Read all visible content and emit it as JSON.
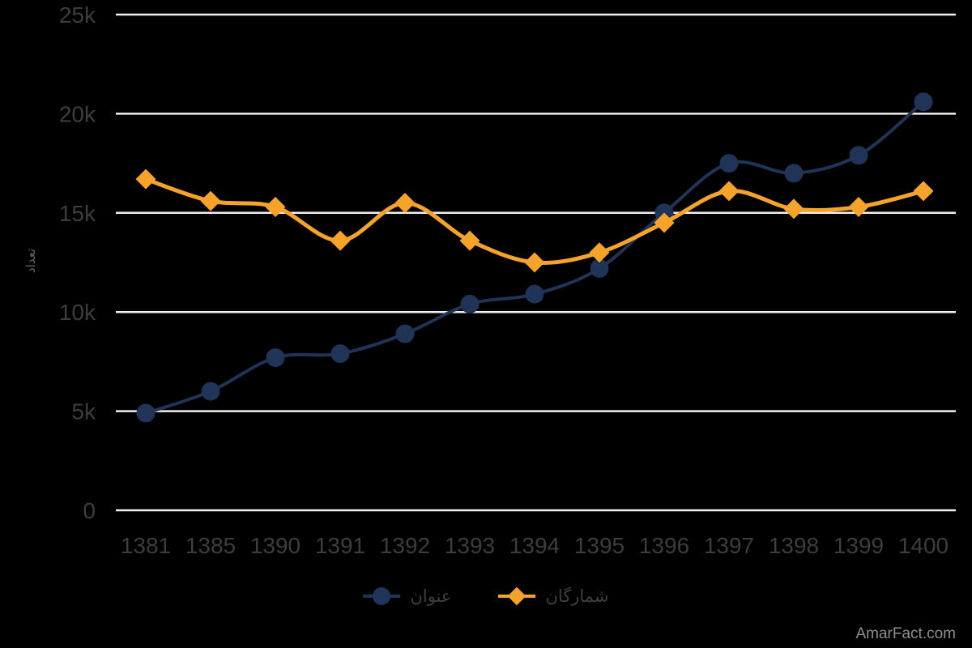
{
  "chart_data": {
    "type": "line",
    "title": "",
    "xlabel": "",
    "ylabel": "تعداد",
    "categories": [
      "1381",
      "1385",
      "1390",
      "1391",
      "1392",
      "1393",
      "1394",
      "1395",
      "1396",
      "1397",
      "1398",
      "1399",
      "1400"
    ],
    "series": [
      {
        "name": "عنوان",
        "color": "#203457",
        "marker": "circle",
        "values": [
          4900,
          6000,
          7700,
          7900,
          8900,
          10400,
          10900,
          12200,
          15000,
          17500,
          17000,
          17900,
          20600
        ]
      },
      {
        "name": "شمارگان",
        "color": "#F6A32A",
        "marker": "diamond",
        "values": [
          16700,
          15600,
          15300,
          13600,
          15500,
          13600,
          12500,
          13000,
          14500,
          16100,
          15200,
          15300,
          16100
        ]
      }
    ],
    "ylim": [
      0,
      25000
    ],
    "yticks": [
      {
        "value": 0,
        "label": "0"
      },
      {
        "value": 5000,
        "label": "5k"
      },
      {
        "value": 10000,
        "label": "10k"
      },
      {
        "value": 15000,
        "label": "15k"
      },
      {
        "value": 20000,
        "label": "20k"
      },
      {
        "value": 25000,
        "label": "25k"
      }
    ],
    "grid": "horizontal",
    "legend_position": "bottom",
    "background": "#000000",
    "grid_color": "#f0f0f0",
    "tick_color": "#3d3d3d",
    "axis_title_color": "#646464"
  },
  "watermark": {
    "text": "AmarFact.com"
  }
}
